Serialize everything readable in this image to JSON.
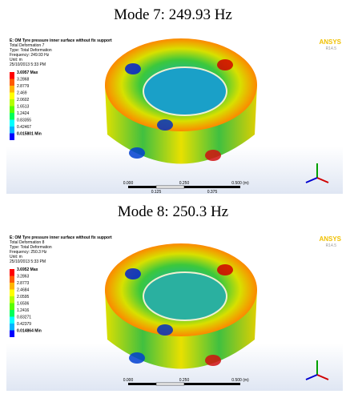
{
  "panels": [
    {
      "caption": "Mode 7: 249.93 Hz",
      "info": [
        "E: OM Tyre pressure inner surface without fix support",
        "Total Deformation 7",
        "Type: Total Deformation",
        "Frequency: 249.93 Hz",
        "Unit: m",
        "25/10/2013 5:33 PM"
      ],
      "legend": [
        "3.6957 Max",
        "3.2868",
        "2.8779",
        "2.469",
        "2.0602",
        "1.6513",
        "1.2424",
        "0.83355",
        "0.42467",
        "0.015801 Min"
      ],
      "logo": "ANSYS",
      "version": "R14.5",
      "scale_top": [
        "0.000",
        "0.250",
        "0.500 (m)"
      ],
      "scale_bottom": [
        "0.125",
        "0.375"
      ]
    },
    {
      "caption": "Mode 8: 250.3 Hz",
      "info": [
        "E: OM Tyre pressure inner surface without fix support",
        "Total Deformation 8",
        "Type: Total Deformation",
        "Frequency: 250.3 Hz",
        "Unit: m",
        "25/10/2013 5:33 PM"
      ],
      "legend": [
        "3.6952 Max",
        "3.2863",
        "2.8773",
        "2.4684",
        "2.0595",
        "1.6506",
        "1.2416",
        "0.83271",
        "0.42379",
        "0.014864 Min"
      ],
      "logo": "ANSYS",
      "version": "R14.5",
      "scale_top": [
        "0.000",
        "0.250",
        "0.500 (m)"
      ],
      "scale_bottom": []
    }
  ]
}
